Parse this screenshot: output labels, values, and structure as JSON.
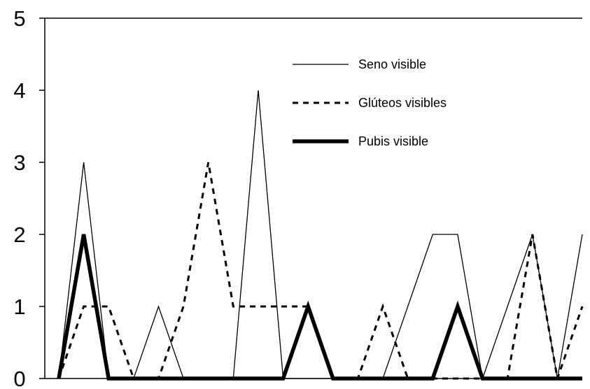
{
  "chart_data": {
    "type": "line",
    "title": "",
    "xlabel": "",
    "ylabel": "",
    "ylim": [
      0,
      5
    ],
    "yticks": [
      "0",
      "1",
      "2",
      "3",
      "4",
      "5"
    ],
    "grid": false,
    "legend_position": "top-right",
    "x": [
      1,
      2,
      3,
      4,
      5,
      6,
      7,
      8,
      9,
      10,
      11,
      12,
      13,
      14,
      15,
      16,
      17,
      18,
      19,
      20,
      21,
      22
    ],
    "series": [
      {
        "name": "Seno visible",
        "style": "solid-thin",
        "color": "#000000",
        "values": [
          0,
          3,
          0,
          0,
          1,
          0,
          0,
          0,
          4,
          0,
          0,
          0,
          0,
          0,
          1,
          2,
          2,
          0,
          1,
          2,
          0,
          2
        ]
      },
      {
        "name": "Glúteos visibles",
        "style": "dashed",
        "color": "#000000",
        "values": [
          0,
          1,
          1,
          0,
          0,
          1,
          3,
          1,
          1,
          1,
          1,
          0,
          0,
          1,
          0,
          0,
          0,
          0,
          0,
          2,
          0,
          1
        ]
      },
      {
        "name": "Pubis visible",
        "style": "solid-thick",
        "color": "#000000",
        "values": [
          0,
          2,
          0,
          0,
          0,
          0,
          0,
          0,
          0,
          0,
          1,
          0,
          0,
          0,
          0,
          0,
          1,
          0,
          0,
          0,
          0,
          0
        ]
      }
    ]
  }
}
